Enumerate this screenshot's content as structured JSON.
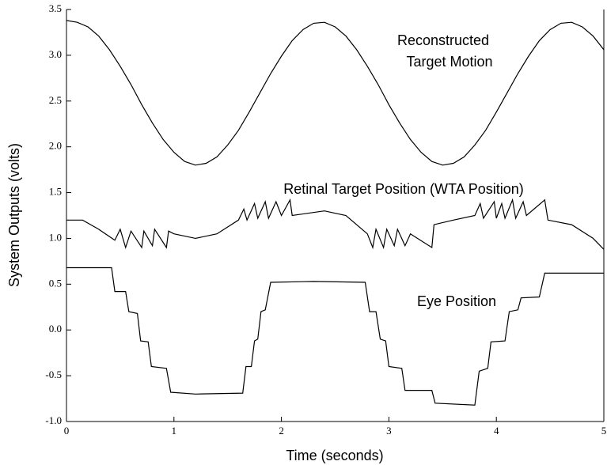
{
  "chart_data": {
    "type": "line",
    "xlabel": "Time (seconds)",
    "ylabel": "System Outputs (volts)",
    "annotations": [
      "Reconstructed",
      "Target Motion",
      "Retinal Target Position (WTA Position)",
      "Eye Position"
    ],
    "xlim": [
      0,
      5
    ],
    "ylim": [
      -1.0,
      3.5
    ],
    "xticks": [
      0,
      1,
      2,
      3,
      4,
      5
    ],
    "yticks": [
      {
        "value": -1.0,
        "label": "-1.0"
      },
      -0.5,
      {
        "value": 0.0,
        "label": "0.0"
      },
      0.5,
      {
        "value": 1.0,
        "label": "1.0"
      },
      1.5,
      {
        "value": 2.0,
        "label": "2.0"
      },
      2.5,
      {
        "value": 3.0,
        "label": "3.0"
      },
      3.5
    ],
    "series": [
      {
        "color": "#000000",
        "x": [
          0,
          0.1,
          0.2,
          0.3,
          0.4,
          0.5,
          0.6,
          0.7,
          0.8,
          0.9,
          1.0,
          1.1,
          1.2,
          1.3,
          1.4,
          1.5,
          1.6,
          1.7,
          1.8,
          1.9,
          2.0,
          2.1,
          2.2,
          2.3,
          2.4,
          2.5,
          2.6,
          2.7,
          2.8,
          2.9,
          3.0,
          3.1,
          3.2,
          3.3,
          3.4,
          3.5,
          3.6,
          3.7,
          3.8,
          3.9,
          4.0,
          4.1,
          4.2,
          4.3,
          4.4,
          4.5,
          4.6,
          4.7,
          4.8,
          4.9,
          5.0
        ],
        "values": [
          3.38,
          3.36,
          3.31,
          3.21,
          3.06,
          2.88,
          2.68,
          2.46,
          2.26,
          2.08,
          1.94,
          1.84,
          1.8,
          1.82,
          1.89,
          2.02,
          2.18,
          2.38,
          2.59,
          2.8,
          2.99,
          3.16,
          3.28,
          3.35,
          3.36,
          3.31,
          3.21,
          3.06,
          2.88,
          2.68,
          2.46,
          2.26,
          2.08,
          1.94,
          1.84,
          1.8,
          1.82,
          1.89,
          2.02,
          2.18,
          2.38,
          2.59,
          2.8,
          2.99,
          3.16,
          3.28,
          3.35,
          3.36,
          3.31,
          3.21,
          3.06
        ]
      },
      {
        "color": "#000000",
        "x": [
          0,
          0.15,
          0.3,
          0.45,
          0.5,
          0.55,
          0.6,
          0.7,
          0.72,
          0.8,
          0.82,
          0.93,
          0.95,
          1.0,
          1.2,
          1.4,
          1.6,
          1.65,
          1.68,
          1.75,
          1.78,
          1.85,
          1.88,
          1.95,
          2.0,
          2.08,
          2.1,
          2.4,
          2.6,
          2.8,
          2.85,
          2.88,
          2.95,
          2.98,
          3.05,
          3.08,
          3.15,
          3.2,
          3.4,
          3.42,
          3.6,
          3.8,
          3.85,
          3.88,
          3.98,
          4.0,
          4.05,
          4.08,
          4.15,
          4.18,
          4.25,
          4.28,
          4.45,
          4.48,
          4.7,
          4.9,
          5.0
        ],
        "values": [
          1.2,
          1.2,
          1.1,
          0.98,
          1.1,
          0.9,
          1.08,
          0.9,
          1.08,
          0.92,
          1.1,
          0.9,
          1.08,
          1.05,
          1.0,
          1.05,
          1.2,
          1.32,
          1.2,
          1.38,
          1.22,
          1.4,
          1.22,
          1.4,
          1.25,
          1.42,
          1.25,
          1.3,
          1.25,
          1.05,
          0.9,
          1.1,
          0.9,
          1.1,
          0.92,
          1.1,
          0.92,
          1.05,
          0.9,
          1.15,
          1.2,
          1.25,
          1.38,
          1.22,
          1.4,
          1.22,
          1.38,
          1.22,
          1.42,
          1.22,
          1.4,
          1.25,
          1.42,
          1.2,
          1.15,
          1.0,
          0.88
        ]
      },
      {
        "color": "#000000",
        "x": [
          0,
          0.42,
          0.45,
          0.55,
          0.58,
          0.66,
          0.69,
          0.76,
          0.79,
          0.93,
          0.97,
          1.2,
          1.64,
          1.67,
          1.72,
          1.75,
          1.78,
          1.81,
          1.85,
          1.9,
          2.3,
          2.78,
          2.82,
          2.88,
          2.92,
          2.97,
          3.0,
          3.12,
          3.15,
          3.4,
          3.43,
          3.8,
          3.84,
          3.92,
          3.95,
          4.08,
          4.12,
          4.2,
          4.23,
          4.4,
          4.45,
          5.0
        ],
        "values": [
          0.68,
          0.68,
          0.42,
          0.42,
          0.2,
          0.18,
          -0.12,
          -0.13,
          -0.4,
          -0.42,
          -0.68,
          -0.7,
          -0.69,
          -0.4,
          -0.4,
          -0.12,
          -0.1,
          0.2,
          0.22,
          0.52,
          0.53,
          0.52,
          0.2,
          0.2,
          -0.1,
          -0.12,
          -0.4,
          -0.42,
          -0.66,
          -0.66,
          -0.8,
          -0.82,
          -0.45,
          -0.42,
          -0.13,
          -0.12,
          0.2,
          0.22,
          0.35,
          0.36,
          0.62,
          0.62
        ]
      }
    ]
  }
}
